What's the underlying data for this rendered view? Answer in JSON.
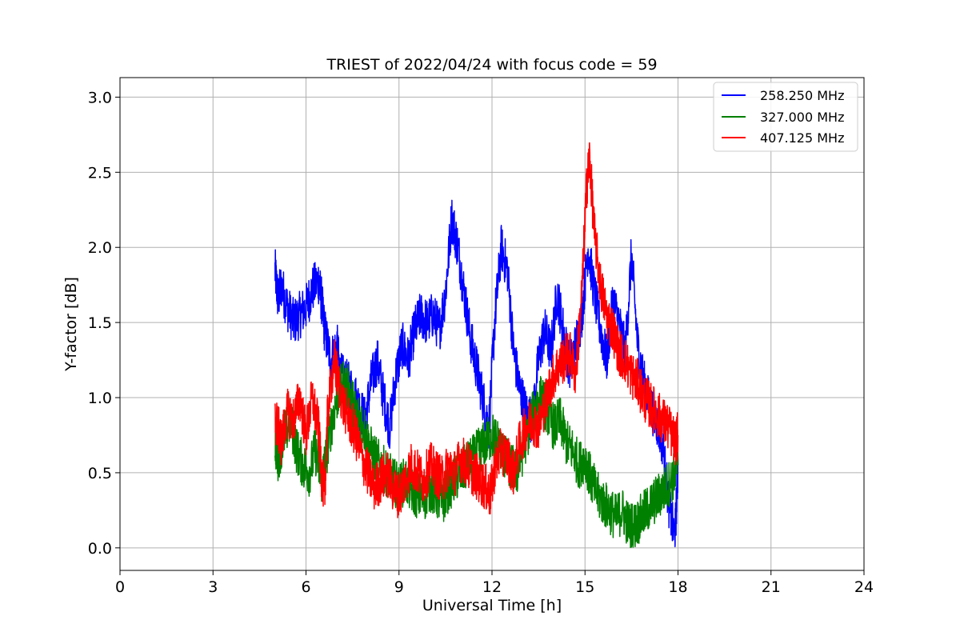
{
  "chart_data": {
    "type": "line",
    "title": "TRIEST of 2022/04/24 with focus code = 59",
    "xlabel": "Universal Time [h]",
    "ylabel": "Y-factor [dB]",
    "xlim": [
      0,
      24
    ],
    "ylim": [
      -0.15,
      3.13
    ],
    "xticks": [
      0,
      3,
      6,
      9,
      12,
      15,
      18,
      21,
      24
    ],
    "xtick_labels": [
      "0",
      "3",
      "6",
      "9",
      "12",
      "15",
      "18",
      "21",
      "24"
    ],
    "yticks": [
      0.0,
      0.5,
      1.0,
      1.5,
      2.0,
      2.5,
      3.0
    ],
    "ytick_labels": [
      "0.0",
      "0.5",
      "1.0",
      "1.5",
      "2.0",
      "2.5",
      "3.0"
    ],
    "grid": true,
    "legend_position": "top-right",
    "series": [
      {
        "name": "258.250 MHz",
        "color": "#0000ff",
        "x": [
          5.0,
          5.1,
          5.2,
          5.4,
          5.6,
          5.8,
          6.0,
          6.2,
          6.4,
          6.5,
          6.6,
          6.8,
          7.0,
          7.1,
          7.3,
          7.5,
          7.7,
          7.9,
          8.1,
          8.3,
          8.5,
          8.7,
          8.9,
          9.1,
          9.3,
          9.5,
          9.7,
          9.9,
          10.1,
          10.3,
          10.5,
          10.7,
          10.9,
          11.1,
          11.3,
          11.5,
          11.7,
          11.9,
          12.1,
          12.3,
          12.5,
          12.7,
          12.9,
          13.1,
          13.3,
          13.5,
          13.7,
          13.9,
          14.1,
          14.3,
          14.5,
          14.7,
          14.9,
          15.1,
          15.3,
          15.5,
          15.7,
          15.9,
          16.1,
          16.3,
          16.5,
          16.7,
          16.9,
          17.1,
          17.3,
          17.5,
          17.7,
          17.9,
          18.0
        ],
        "y": [
          1.85,
          1.65,
          1.75,
          1.6,
          1.5,
          1.55,
          1.6,
          1.72,
          1.78,
          1.65,
          1.45,
          1.25,
          1.35,
          1.15,
          1.1,
          1.05,
          0.95,
          0.85,
          1.1,
          1.25,
          1.0,
          0.8,
          1.15,
          1.35,
          1.25,
          1.45,
          1.55,
          1.5,
          1.55,
          1.45,
          1.7,
          2.2,
          2.0,
          1.7,
          1.4,
          1.2,
          1.0,
          0.8,
          1.55,
          2.0,
          1.85,
          1.3,
          1.05,
          0.9,
          0.85,
          1.25,
          1.45,
          1.3,
          1.7,
          1.45,
          1.2,
          1.35,
          1.55,
          2.0,
          1.7,
          1.45,
          1.25,
          1.65,
          1.5,
          1.3,
          1.95,
          1.35,
          1.1,
          0.95,
          0.85,
          0.7,
          0.3,
          0.05,
          0.55
        ]
      },
      {
        "name": "327.000 MHz",
        "color": "#008000",
        "x": [
          5.0,
          5.1,
          5.3,
          5.5,
          5.7,
          5.9,
          6.1,
          6.3,
          6.5,
          6.6,
          6.8,
          7.0,
          7.2,
          7.4,
          7.6,
          7.8,
          8.0,
          8.2,
          8.4,
          8.6,
          8.8,
          9.0,
          9.2,
          9.4,
          9.6,
          9.8,
          10.0,
          10.2,
          10.4,
          10.6,
          10.8,
          11.0,
          11.2,
          11.4,
          11.6,
          11.8,
          12.0,
          12.2,
          12.4,
          12.6,
          12.8,
          13.0,
          13.2,
          13.4,
          13.6,
          13.8,
          14.0,
          14.2,
          14.4,
          14.6,
          14.8,
          15.0,
          15.2,
          15.4,
          15.6,
          15.8,
          16.0,
          16.2,
          16.4,
          16.6,
          16.8,
          17.0,
          17.2,
          17.4,
          17.6,
          17.8,
          18.0
        ],
        "y": [
          0.7,
          0.6,
          0.75,
          0.85,
          0.65,
          0.55,
          0.5,
          0.65,
          0.45,
          0.55,
          0.8,
          1.0,
          1.1,
          1.05,
          0.9,
          0.85,
          0.7,
          0.6,
          0.55,
          0.5,
          0.45,
          0.4,
          0.45,
          0.38,
          0.35,
          0.33,
          0.4,
          0.35,
          0.3,
          0.4,
          0.45,
          0.5,
          0.55,
          0.6,
          0.65,
          0.7,
          0.75,
          0.7,
          0.6,
          0.55,
          0.5,
          0.65,
          0.8,
          0.95,
          1.0,
          0.9,
          0.8,
          0.85,
          0.7,
          0.65,
          0.55,
          0.6,
          0.45,
          0.35,
          0.3,
          0.25,
          0.2,
          0.25,
          0.15,
          0.15,
          0.2,
          0.25,
          0.3,
          0.35,
          0.4,
          0.45,
          0.55
        ]
      },
      {
        "name": "407.125 MHz",
        "color": "#ff0000",
        "x": [
          5.0,
          5.1,
          5.2,
          5.4,
          5.6,
          5.8,
          6.0,
          6.2,
          6.4,
          6.5,
          6.6,
          6.7,
          6.9,
          7.0,
          7.2,
          7.4,
          7.6,
          7.8,
          8.0,
          8.2,
          8.4,
          8.6,
          8.8,
          9.0,
          9.2,
          9.4,
          9.6,
          9.8,
          10.0,
          10.2,
          10.4,
          10.6,
          10.8,
          11.0,
          11.2,
          11.4,
          11.6,
          11.8,
          11.95,
          12.1,
          12.3,
          12.5,
          12.7,
          12.9,
          13.1,
          13.3,
          13.5,
          13.7,
          13.9,
          14.1,
          14.3,
          14.5,
          14.7,
          14.9,
          15.05,
          15.15,
          15.3,
          15.5,
          15.7,
          15.9,
          16.1,
          16.3,
          16.5,
          16.7,
          16.9,
          17.1,
          17.3,
          17.5,
          17.7,
          17.9,
          18.0
        ],
        "y": [
          0.85,
          0.8,
          0.7,
          0.9,
          0.85,
          1.0,
          0.75,
          1.0,
          0.8,
          0.5,
          0.35,
          0.9,
          1.25,
          1.15,
          0.95,
          0.85,
          0.75,
          0.6,
          0.5,
          0.4,
          0.45,
          0.5,
          0.4,
          0.35,
          0.45,
          0.55,
          0.5,
          0.45,
          0.55,
          0.5,
          0.45,
          0.55,
          0.5,
          0.6,
          0.55,
          0.5,
          0.45,
          0.4,
          0.35,
          0.55,
          0.65,
          0.6,
          0.5,
          0.7,
          0.8,
          0.85,
          0.8,
          0.95,
          1.1,
          1.2,
          1.25,
          1.3,
          1.15,
          1.7,
          2.4,
          2.6,
          2.1,
          1.75,
          1.55,
          1.45,
          1.3,
          1.25,
          1.15,
          1.1,
          1.0,
          0.95,
          0.9,
          0.85,
          0.8,
          0.7,
          0.75
        ]
      }
    ]
  }
}
